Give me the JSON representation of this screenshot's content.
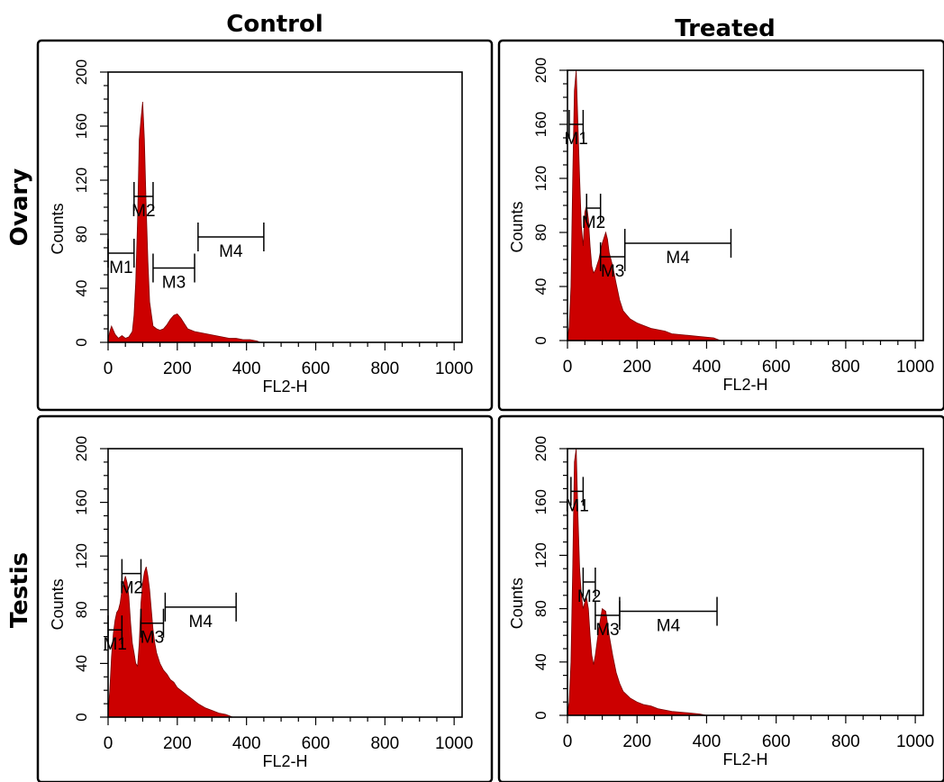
{
  "figure": {
    "col_titles": [
      "Control",
      "Treated"
    ],
    "row_titles": [
      "Ovary",
      "Testis"
    ]
  },
  "colors": {
    "histogram_fill": "#cc0000",
    "histogram_edge": "#7a0000",
    "axes": "#000000"
  },
  "chart_data": [
    {
      "type": "area",
      "row": "Ovary",
      "column": "Control",
      "xlabel": "FL2-H",
      "ylabel": "Counts",
      "xlim": [
        0,
        1023
      ],
      "ylim": [
        0,
        200
      ],
      "xticks": [
        0,
        200,
        400,
        600,
        800,
        1000
      ],
      "yticks": [
        0,
        40,
        80,
        120,
        160,
        200
      ],
      "x": [
        0,
        5,
        10,
        20,
        30,
        40,
        50,
        60,
        70,
        75,
        80,
        85,
        90,
        95,
        100,
        105,
        110,
        115,
        120,
        130,
        140,
        150,
        160,
        170,
        180,
        190,
        200,
        210,
        220,
        230,
        250,
        270,
        290,
        310,
        330,
        350,
        370,
        390,
        410,
        430,
        440
      ],
      "y": [
        2,
        8,
        12,
        6,
        3,
        5,
        3,
        4,
        8,
        20,
        45,
        90,
        150,
        165,
        178,
        150,
        100,
        60,
        30,
        12,
        10,
        9,
        10,
        13,
        17,
        20,
        21,
        18,
        14,
        10,
        8,
        7,
        6,
        5,
        4,
        3,
        3,
        2,
        2,
        1,
        0
      ],
      "markers": [
        {
          "label": "M1",
          "x1": 0,
          "x2": 75,
          "y": 66
        },
        {
          "label": "M2",
          "x1": 75,
          "x2": 130,
          "y": 108
        },
        {
          "label": "M3",
          "x1": 130,
          "x2": 250,
          "y": 55
        },
        {
          "label": "M4",
          "x1": 260,
          "x2": 450,
          "y": 78
        }
      ]
    },
    {
      "type": "area",
      "row": "Ovary",
      "column": "Treated",
      "xlabel": "FL2-H",
      "ylabel": "Counts",
      "xlim": [
        0,
        1023
      ],
      "ylim": [
        0,
        200
      ],
      "xticks": [
        0,
        200,
        400,
        600,
        800,
        1000
      ],
      "yticks": [
        0,
        40,
        80,
        120,
        160,
        200
      ],
      "x": [
        0,
        5,
        10,
        15,
        20,
        25,
        30,
        35,
        40,
        45,
        50,
        55,
        60,
        65,
        70,
        75,
        80,
        90,
        100,
        110,
        115,
        120,
        130,
        140,
        150,
        160,
        180,
        200,
        220,
        240,
        260,
        280,
        300,
        340,
        380,
        420,
        440
      ],
      "y": [
        2,
        10,
        40,
        120,
        185,
        200,
        160,
        120,
        85,
        70,
        95,
        100,
        90,
        70,
        55,
        50,
        52,
        60,
        72,
        80,
        75,
        65,
        55,
        42,
        30,
        22,
        16,
        13,
        11,
        9,
        8,
        7,
        5,
        4,
        3,
        2,
        0
      ],
      "markers": [
        {
          "label": "M1",
          "x1": 5,
          "x2": 45,
          "y": 160
        },
        {
          "label": "M2",
          "x1": 55,
          "x2": 95,
          "y": 98
        },
        {
          "label": "M3",
          "x1": 95,
          "x2": 165,
          "y": 62
        },
        {
          "label": "M4",
          "x1": 165,
          "x2": 470,
          "y": 72
        }
      ]
    },
    {
      "type": "area",
      "row": "Testis",
      "column": "Control",
      "xlabel": "FL2-H",
      "ylabel": "Counts",
      "xlim": [
        0,
        1023
      ],
      "ylim": [
        0,
        200
      ],
      "xticks": [
        0,
        200,
        400,
        600,
        800,
        1000
      ],
      "yticks": [
        0,
        40,
        80,
        120,
        160,
        200
      ],
      "x": [
        0,
        5,
        10,
        15,
        20,
        25,
        30,
        35,
        40,
        45,
        50,
        55,
        60,
        65,
        70,
        75,
        80,
        85,
        90,
        95,
        100,
        105,
        110,
        115,
        120,
        125,
        130,
        135,
        140,
        150,
        160,
        170,
        180,
        190,
        200,
        220,
        240,
        260,
        280,
        300,
        320,
        340,
        360
      ],
      "y": [
        3,
        20,
        45,
        62,
        72,
        78,
        80,
        85,
        95,
        100,
        105,
        100,
        90,
        70,
        55,
        48,
        40,
        38,
        55,
        85,
        100,
        108,
        112,
        105,
        95,
        80,
        65,
        55,
        48,
        40,
        35,
        32,
        28,
        26,
        22,
        18,
        14,
        10,
        7,
        5,
        3,
        2,
        0
      ],
      "markers": [
        {
          "label": "M1",
          "x1": 0,
          "x2": 40,
          "y": 65
        },
        {
          "label": "M2",
          "x1": 40,
          "x2": 95,
          "y": 107
        },
        {
          "label": "M3",
          "x1": 95,
          "x2": 160,
          "y": 70
        },
        {
          "label": "M4",
          "x1": 165,
          "x2": 370,
          "y": 82
        }
      ]
    },
    {
      "type": "area",
      "row": "Testis",
      "column": "Treated",
      "xlabel": "FL2-H",
      "ylabel": "Counts",
      "xlim": [
        0,
        1023
      ],
      "ylim": [
        0,
        200
      ],
      "xticks": [
        0,
        200,
        400,
        600,
        800,
        1000
      ],
      "yticks": [
        0,
        40,
        80,
        120,
        160,
        200
      ],
      "x": [
        0,
        5,
        10,
        15,
        20,
        25,
        30,
        35,
        40,
        45,
        50,
        55,
        60,
        65,
        70,
        75,
        80,
        90,
        100,
        110,
        120,
        130,
        140,
        150,
        160,
        180,
        200,
        220,
        240,
        260,
        280,
        300,
        340,
        380,
        400
      ],
      "y": [
        2,
        10,
        40,
        110,
        190,
        200,
        150,
        110,
        90,
        80,
        85,
        88,
        80,
        60,
        45,
        38,
        45,
        65,
        80,
        78,
        60,
        45,
        32,
        24,
        18,
        13,
        10,
        8,
        7,
        5,
        4,
        3,
        2,
        1,
        0
      ],
      "markers": [
        {
          "label": "M1",
          "x1": 10,
          "x2": 45,
          "y": 168
        },
        {
          "label": "M2",
          "x1": 45,
          "x2": 80,
          "y": 100
        },
        {
          "label": "M3",
          "x1": 80,
          "x2": 150,
          "y": 75
        },
        {
          "label": "M4",
          "x1": 150,
          "x2": 430,
          "y": 78
        }
      ]
    }
  ]
}
